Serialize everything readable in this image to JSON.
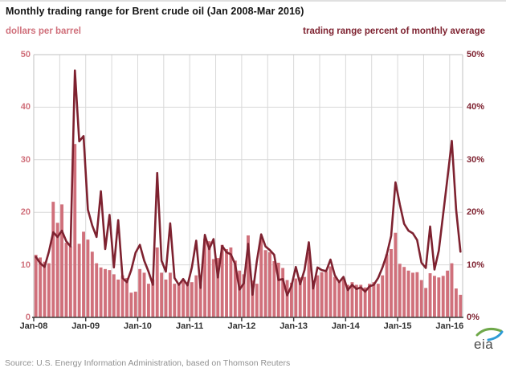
{
  "header": {
    "title": "Monthly trading range for Brent crude oil (Jan 2008-Mar 2016)",
    "left_axis_label": "dollars per barrel",
    "right_axis_label": "trading range percent of monthly average"
  },
  "footer": {
    "source_note": "Source: U.S. Energy Information Administration, based on Thomson Reuters",
    "logo_text": "eia"
  },
  "colors": {
    "bar": "#d0707b",
    "line": "#7e2230",
    "left_axis_text": "#d0707b",
    "right_axis_text": "#7e2230",
    "grid": "#d8d8d8",
    "plot_border": "#c2c2c2",
    "axis": "#3a3a3a",
    "x_tick_text": "#333333",
    "logo_green": "#6fa84a",
    "logo_blue": "#2e9bd6"
  },
  "chart_data": {
    "type": "bar",
    "title": "Monthly trading range for Brent crude oil (Jan 2008-Mar 2016)",
    "grid": true,
    "legend_position": "none",
    "x_months": [
      "Jan-08",
      "Feb-08",
      "Mar-08",
      "Apr-08",
      "May-08",
      "Jun-08",
      "Jul-08",
      "Aug-08",
      "Sep-08",
      "Oct-08",
      "Nov-08",
      "Dec-08",
      "Jan-09",
      "Feb-09",
      "Mar-09",
      "Apr-09",
      "May-09",
      "Jun-09",
      "Jul-09",
      "Aug-09",
      "Sep-09",
      "Oct-09",
      "Nov-09",
      "Dec-09",
      "Jan-10",
      "Feb-10",
      "Mar-10",
      "Apr-10",
      "May-10",
      "Jun-10",
      "Jul-10",
      "Aug-10",
      "Sep-10",
      "Oct-10",
      "Nov-10",
      "Dec-10",
      "Jan-11",
      "Feb-11",
      "Mar-11",
      "Apr-11",
      "May-11",
      "Jun-11",
      "Jul-11",
      "Aug-11",
      "Sep-11",
      "Oct-11",
      "Nov-11",
      "Dec-11",
      "Jan-12",
      "Feb-12",
      "Mar-12",
      "Apr-12",
      "May-12",
      "Jun-12",
      "Jul-12",
      "Aug-12",
      "Sep-12",
      "Oct-12",
      "Nov-12",
      "Dec-12",
      "Jan-13",
      "Feb-13",
      "Mar-13",
      "Apr-13",
      "May-13",
      "Jun-13",
      "Jul-13",
      "Aug-13",
      "Sep-13",
      "Oct-13",
      "Nov-13",
      "Dec-13",
      "Jan-14",
      "Feb-14",
      "Mar-14",
      "Apr-14",
      "May-14",
      "Jun-14",
      "Jul-14",
      "Aug-14",
      "Sep-14",
      "Oct-14",
      "Nov-14",
      "Dec-14",
      "Jan-15",
      "Feb-15",
      "Mar-15",
      "Apr-15",
      "May-15",
      "Jun-15",
      "Jul-15",
      "Aug-15",
      "Sep-15",
      "Oct-15",
      "Nov-15",
      "Dec-15",
      "Jan-16",
      "Feb-16",
      "Mar-16"
    ],
    "x_year_tick_labels": [
      "Jan-08",
      "Jan-09",
      "Jan-10",
      "Jan-11",
      "Jan-12",
      "Jan-13",
      "Jan-14",
      "Jan-15",
      "Jan-16"
    ],
    "series": [
      {
        "name": "trading range (dollars per barrel)",
        "type": "bar",
        "axis": "left",
        "values": [
          11.9,
          11.4,
          10.6,
          10.3,
          22.0,
          18.0,
          21.5,
          14.2,
          13.5,
          33.0,
          14.0,
          16.3,
          14.8,
          12.5,
          10.3,
          9.5,
          9.2,
          9.0,
          8.2,
          7.2,
          8.0,
          7.5,
          4.7,
          4.9,
          9.2,
          8.5,
          6.4,
          7.2,
          13.3,
          8.5,
          7.2,
          8.5,
          6.4,
          6.2,
          7.2,
          6.7,
          6.7,
          8.0,
          8.0,
          15.0,
          14.5,
          11.1,
          11.3,
          13.8,
          13.0,
          13.3,
          10.8,
          8.9,
          8.2,
          15.6,
          7.0,
          6.4,
          15.0,
          12.8,
          12.4,
          10.7,
          10.4,
          9.4,
          7.1,
          6.6,
          7.4,
          7.6,
          7.7,
          12.4,
          7.0,
          8.0,
          8.6,
          8.7,
          9.7,
          7.7,
          7.0,
          7.2,
          6.2,
          6.7,
          6.2,
          6.2,
          5.7,
          6.4,
          6.7,
          6.4,
          8.0,
          12.0,
          13.0,
          16.1,
          10.2,
          9.6,
          8.9,
          8.5,
          8.6,
          7.1,
          5.6,
          8.4,
          7.9,
          7.6,
          7.9,
          8.9,
          10.3,
          5.5,
          4.3
        ]
      },
      {
        "name": "trading range percent of monthly average",
        "type": "line",
        "axis": "right",
        "values": [
          11.5,
          10.3,
          9.6,
          12.5,
          16.2,
          15.3,
          16.5,
          14.5,
          13.5,
          47.0,
          33.5,
          34.5,
          20.5,
          17.5,
          15.3,
          24.0,
          13.0,
          19.5,
          9.5,
          18.5,
          7.5,
          6.7,
          9.0,
          12.3,
          13.8,
          10.8,
          8.7,
          6.2,
          27.5,
          10.8,
          8.7,
          17.9,
          7.5,
          6.2,
          7.3,
          6.1,
          9.5,
          14.6,
          5.6,
          15.7,
          13.0,
          14.9,
          7.6,
          13.6,
          12.4,
          12.0,
          10.1,
          5.3,
          6.5,
          14.0,
          4.3,
          10.7,
          15.8,
          13.5,
          12.8,
          11.9,
          7.1,
          7.3,
          4.2,
          6.0,
          9.6,
          6.3,
          9.0,
          14.3,
          5.5,
          9.5,
          9.0,
          8.8,
          11.0,
          8.0,
          6.7,
          7.7,
          5.2,
          6.2,
          5.4,
          5.7,
          4.9,
          5.9,
          6.2,
          7.5,
          9.5,
          12.0,
          15.5,
          25.7,
          21.5,
          17.8,
          16.5,
          16.0,
          14.7,
          10.4,
          9.4,
          17.3,
          9.1,
          12.7,
          19.6,
          26.5,
          33.6,
          20.5,
          12.5
        ]
      }
    ],
    "y_left": {
      "label": "dollars per barrel",
      "min": 0,
      "max": 50,
      "tick_labels": [
        "0",
        "10",
        "20",
        "30",
        "40",
        "50"
      ]
    },
    "y_right": {
      "label": "trading range percent of monthly average",
      "min": 0,
      "max": 50,
      "tick_labels": [
        "0%",
        "10%",
        "20%",
        "30%",
        "40%",
        "50%"
      ]
    }
  }
}
